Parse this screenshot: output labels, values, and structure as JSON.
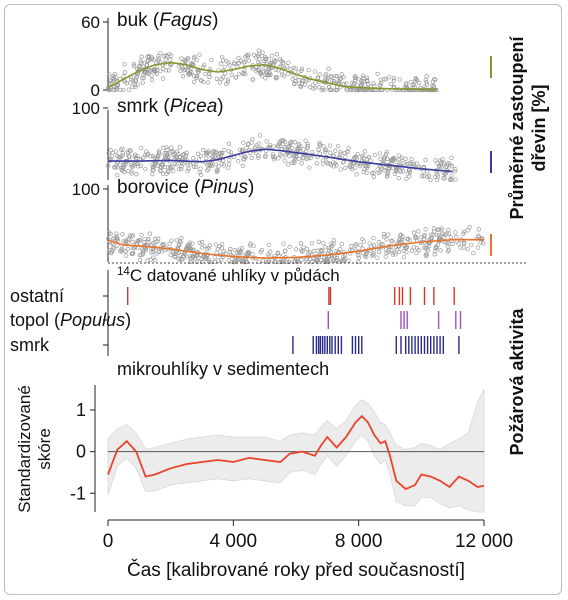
{
  "chart_data": [
    {
      "type": "scatter",
      "title": "",
      "label_parts": [
        "buk (",
        "Fagus",
        ")"
      ],
      "ylim": [
        0,
        60
      ],
      "yticks": [
        "60",
        "0"
      ],
      "xlim": [
        0,
        12000
      ],
      "colors": {
        "trend": "#7f9a2a",
        "points": "#9a9a9a"
      },
      "series": [
        {
          "name": "trend",
          "x": [
            0,
            500,
            1000,
            1500,
            2000,
            2500,
            3000,
            3500,
            4000,
            4500,
            5000,
            5500,
            6000,
            6500,
            7000,
            7500,
            8000,
            8500,
            9000,
            9500,
            10000,
            10500
          ],
          "y": [
            2,
            9,
            16,
            21,
            23,
            21,
            17,
            15,
            17,
            20,
            21,
            18,
            13,
            9,
            6,
            3,
            2,
            1.5,
            1,
            0.8,
            0.5,
            0.3
          ]
        }
      ]
    },
    {
      "type": "scatter",
      "title": "",
      "label_parts": [
        "smrk (",
        "Picea",
        ")"
      ],
      "ylim": [
        0,
        100
      ],
      "yticks": [
        "100"
      ],
      "xlim": [
        0,
        12000
      ],
      "colors": {
        "trend": "#3a3aa0",
        "points": "#9a9a9a"
      },
      "series": [
        {
          "name": "trend",
          "x": [
            0,
            1000,
            2000,
            3000,
            3500,
            4000,
            4500,
            5000,
            5500,
            6000,
            7000,
            8000,
            9000,
            10000,
            11000
          ],
          "y": [
            27,
            27,
            28,
            26,
            29,
            35,
            41,
            44,
            42,
            39,
            33,
            26,
            21,
            16,
            12
          ]
        }
      ]
    },
    {
      "type": "scatter",
      "title": "",
      "label_parts": [
        "borovice (",
        "Pinus",
        ")"
      ],
      "ylim": [
        0,
        100
      ],
      "yticks": [
        "100"
      ],
      "xlim": [
        0,
        12000
      ],
      "colors": {
        "trend": "#e8742a",
        "points": "#9a9a9a"
      },
      "series": [
        {
          "name": "trend",
          "x": [
            0,
            500,
            1000,
            2000,
            3000,
            4000,
            5000,
            6000,
            7000,
            8000,
            9000,
            10000,
            11000,
            12000
          ],
          "y": [
            28,
            22,
            21,
            17,
            11,
            7,
            5,
            6,
            9,
            14,
            21,
            26,
            29,
            29
          ]
        }
      ]
    },
    {
      "type": "scatter",
      "title": "",
      "label_parts": [
        "",
        "14",
        "C datované uhlíky v půdách"
      ],
      "rows": [
        {
          "label_parts": [
            "ostatní",
            "",
            ""
          ],
          "color": "#d8342a",
          "x": [
            630,
            7050,
            7100,
            9150,
            9300,
            9400,
            9650,
            10100,
            10400,
            11050
          ]
        },
        {
          "label_parts": [
            "topol (",
            "Populus",
            ")"
          ],
          "color": "#a050c0",
          "x": [
            7030,
            9350,
            9450,
            9550,
            10550,
            11100,
            11250
          ]
        },
        {
          "label_parts": [
            "smrk",
            "",
            ""
          ],
          "color": "#2a2a8a",
          "x": [
            5900,
            6550,
            6650,
            6720,
            6780,
            6850,
            6920,
            7000,
            7080,
            7150,
            7250,
            7350,
            7450,
            7800,
            7900,
            8000,
            8100,
            9200,
            9350,
            9500,
            9600,
            9700,
            9800,
            9900,
            10000,
            10100,
            10200,
            10300,
            10400,
            10500,
            10600,
            10700,
            11200
          ]
        }
      ]
    },
    {
      "type": "line",
      "title": "",
      "label_parts": [
        "mikrouhlíky v sedimentech"
      ],
      "ylabel": [
        "Standardizované",
        "skóre"
      ],
      "xlabel": "Čas [kalibrované roky před současností]",
      "ylim": [
        -1.45,
        1.6
      ],
      "yticks": [
        {
          "v": 1,
          "t": "1"
        },
        {
          "v": 0,
          "t": "0"
        },
        {
          "v": -1,
          "t": "-1"
        }
      ],
      "xlim": [
        0,
        12000
      ],
      "xticks": [
        {
          "v": 0,
          "t": "0"
        },
        {
          "v": 4000,
          "t": "4 000"
        },
        {
          "v": 8000,
          "t": "8 000"
        },
        {
          "v": 12000,
          "t": "12 000"
        }
      ],
      "colors": {
        "line": "#e8442a",
        "band": "#ececec",
        "zero": "#555555"
      },
      "series": [
        {
          "name": "score",
          "x": [
            0,
            300,
            600,
            900,
            1200,
            1500,
            2000,
            2500,
            3000,
            3500,
            4000,
            4500,
            5000,
            5500,
            5800,
            6200,
            6600,
            6800,
            7000,
            7300,
            7600,
            7900,
            8100,
            8300,
            8500,
            8700,
            8850,
            9000,
            9200,
            9500,
            9800,
            10000,
            10300,
            10600,
            10900,
            11200,
            11500,
            11800,
            12000
          ],
          "y": [
            -0.55,
            0.05,
            0.25,
            0.0,
            -0.6,
            -0.55,
            -0.4,
            -0.3,
            -0.25,
            -0.2,
            -0.25,
            -0.15,
            -0.2,
            -0.25,
            -0.05,
            0.0,
            -0.1,
            0.15,
            0.35,
            0.1,
            0.35,
            0.7,
            0.85,
            0.7,
            0.4,
            0.2,
            0.25,
            -0.1,
            -0.7,
            -0.9,
            -0.8,
            -0.55,
            -0.6,
            -0.7,
            -0.85,
            -0.6,
            -0.7,
            -0.85,
            -0.82
          ],
          "upper": [
            0.3,
            0.55,
            0.65,
            0.45,
            0.05,
            0.1,
            0.2,
            0.3,
            0.35,
            0.4,
            0.35,
            0.35,
            0.35,
            0.25,
            0.4,
            0.45,
            0.4,
            0.6,
            0.75,
            0.55,
            0.75,
            1.1,
            1.25,
            1.15,
            0.95,
            0.7,
            0.65,
            0.45,
            0.15,
            0.05,
            0.1,
            0.2,
            0.15,
            0.05,
            0.2,
            0.3,
            0.45,
            1.2,
            1.5
          ],
          "lower": [
            -1.05,
            -0.35,
            -0.15,
            -0.4,
            -0.95,
            -0.95,
            -0.8,
            -0.75,
            -0.7,
            -0.65,
            -0.7,
            -0.65,
            -0.7,
            -0.75,
            -0.5,
            -0.45,
            -0.55,
            -0.3,
            -0.1,
            -0.35,
            -0.1,
            0.25,
            0.4,
            0.25,
            -0.1,
            -0.3,
            -0.2,
            -0.55,
            -1.2,
            -1.3,
            -1.3,
            -1.1,
            -1.1,
            -1.25,
            -1.35,
            -1.3,
            -1.4,
            -1.45,
            -1.45
          ]
        }
      ]
    }
  ],
  "side_labels": {
    "abundance": [
      "Průměrné zastoupení",
      "dřevin [%]"
    ],
    "fire": "Požárová aktivita"
  }
}
